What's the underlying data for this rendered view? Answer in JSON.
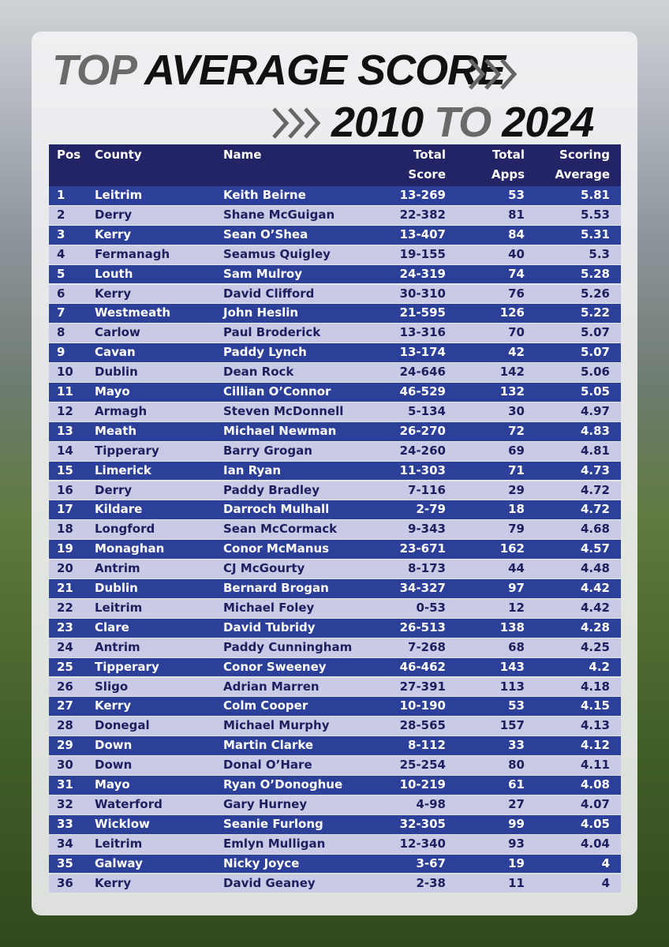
{
  "header": {
    "line1": [
      "TOP",
      "AVERAGE SCORE"
    ],
    "line2": [
      "2010",
      "TO",
      "2024"
    ]
  },
  "table": {
    "columns": [
      [
        "Pos"
      ],
      [
        "County"
      ],
      [
        "Name"
      ],
      [
        "Total",
        "Score"
      ],
      [
        "Total",
        "Apps"
      ],
      [
        "Scoring",
        "Average"
      ]
    ],
    "rows": [
      [
        1,
        "Leitrim",
        "Keith Beirne",
        "13-269",
        53,
        5.81
      ],
      [
        2,
        "Derry",
        "Shane McGuigan",
        "22-382",
        81,
        5.53
      ],
      [
        3,
        "Kerry",
        "Sean O’Shea",
        "13-407",
        84,
        5.31
      ],
      [
        4,
        "Fermanagh",
        "Seamus Quigley",
        "19-155",
        40,
        5.3
      ],
      [
        5,
        "Louth",
        "Sam Mulroy",
        "24-319",
        74,
        5.28
      ],
      [
        6,
        "Kerry",
        "David Clifford",
        "30-310",
        76,
        5.26
      ],
      [
        7,
        "Westmeath",
        "John Heslin",
        "21-595",
        126,
        5.22
      ],
      [
        8,
        "Carlow",
        "Paul Broderick",
        "13-316",
        70,
        5.07
      ],
      [
        9,
        "Cavan",
        "Paddy Lynch",
        "13-174",
        42,
        5.07
      ],
      [
        10,
        "Dublin",
        "Dean Rock",
        "24-646",
        142,
        5.06
      ],
      [
        11,
        "Mayo",
        "Cillian O’Connor",
        "46-529",
        132,
        5.05
      ],
      [
        12,
        "Armagh",
        "Steven McDonnell",
        "5-134",
        30,
        4.97
      ],
      [
        13,
        "Meath",
        "Michael Newman",
        "26-270",
        72,
        4.83
      ],
      [
        14,
        "Tipperary",
        "Barry Grogan",
        "24-260",
        69,
        4.81
      ],
      [
        15,
        "Limerick",
        "Ian Ryan",
        "11-303",
        71,
        4.73
      ],
      [
        16,
        "Derry",
        "Paddy Bradley",
        "7-116",
        29,
        4.72
      ],
      [
        17,
        "Kildare",
        "Darroch Mulhall",
        "2-79",
        18,
        4.72
      ],
      [
        18,
        "Longford",
        "Sean McCormack",
        "9-343",
        79,
        4.68
      ],
      [
        19,
        "Monaghan",
        "Conor McManus",
        "23-671",
        162,
        4.57
      ],
      [
        20,
        "Antrim",
        "CJ McGourty",
        "8-173",
        44,
        4.48
      ],
      [
        21,
        "Dublin",
        "Bernard Brogan",
        "34-327",
        97,
        4.42
      ],
      [
        22,
        "Leitrim",
        "Michael Foley",
        "0-53",
        12,
        4.42
      ],
      [
        23,
        "Clare",
        "David Tubridy",
        "26-513",
        138,
        4.28
      ],
      [
        24,
        "Antrim",
        "Paddy Cunningham",
        "7-268",
        68,
        4.25
      ],
      [
        25,
        "Tipperary",
        "Conor Sweeney",
        "46-462",
        143,
        4.2
      ],
      [
        26,
        "Sligo",
        "Adrian Marren",
        "27-391",
        113,
        4.18
      ],
      [
        27,
        "Kerry",
        "Colm Cooper",
        "10-190",
        53,
        4.15
      ],
      [
        28,
        "Donegal",
        "Michael Murphy",
        "28-565",
        157,
        4.13
      ],
      [
        29,
        "Down",
        "Martin Clarke",
        "8-112",
        33,
        4.12
      ],
      [
        30,
        "Down",
        "Donal O’Hare",
        "25-254",
        80,
        4.11
      ],
      [
        31,
        "Mayo",
        "Ryan O’Donoghue",
        "10-219",
        61,
        4.08
      ],
      [
        32,
        "Waterford",
        "Gary Hurney",
        "4-98",
        27,
        4.07
      ],
      [
        33,
        "Wicklow",
        "Seanie Furlong",
        "32-305",
        99,
        4.05
      ],
      [
        34,
        "Leitrim",
        "Emlyn Mulligan",
        "12-340",
        93,
        4.04
      ],
      [
        35,
        "Galway",
        "Nicky Joyce",
        "3-67",
        19,
        4
      ],
      [
        36,
        "Kerry",
        "David Geaney",
        "2-38",
        11,
        4
      ]
    ]
  }
}
